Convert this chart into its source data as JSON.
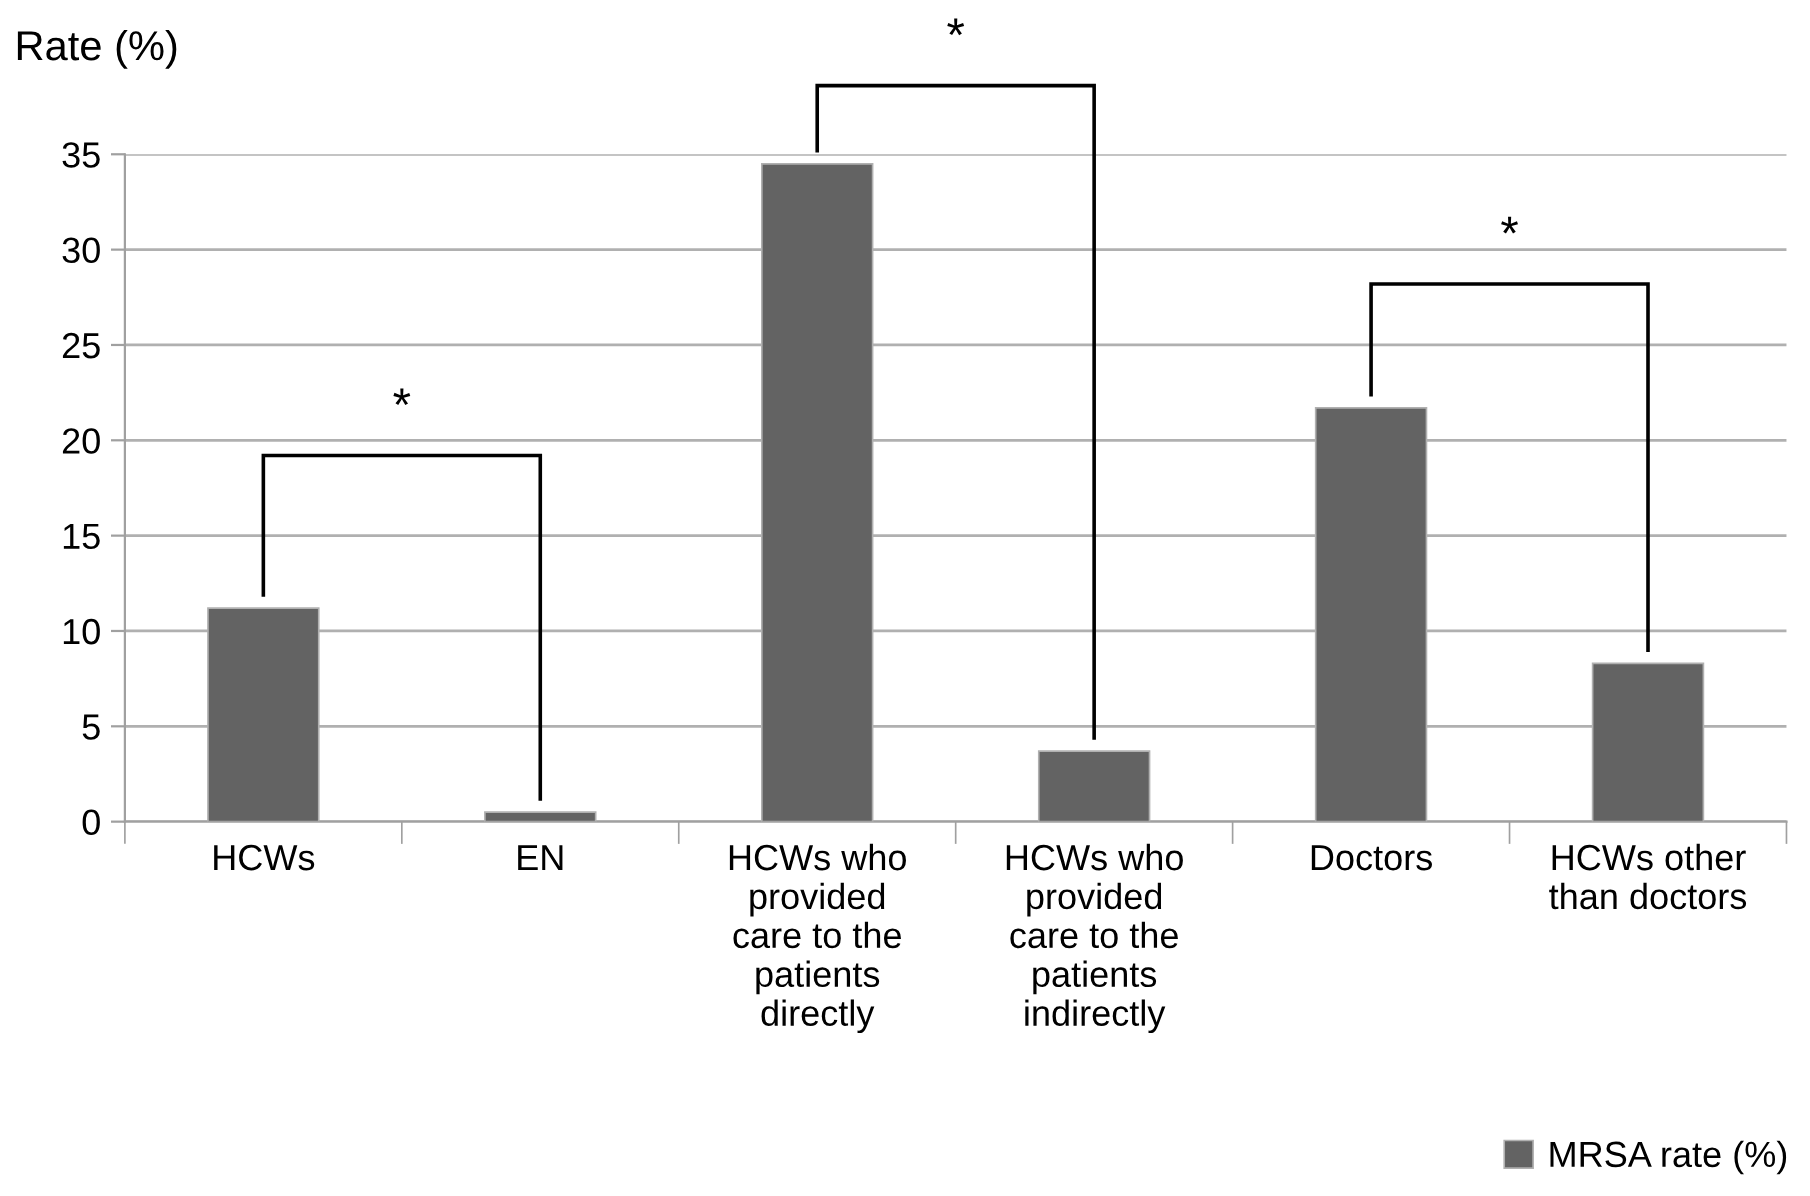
{
  "chart_data": {
    "type": "bar",
    "ylabel": "Rate (%)",
    "categories": [
      "HCWs",
      "EN",
      "HCWs who provided care to the patients directly",
      "HCWs who provided care to the patients indirectly",
      "Doctors",
      "HCWs other than doctors"
    ],
    "series": [
      {
        "name": "MRSA rate (%)",
        "color": "#636363",
        "values": [
          11.2,
          0.5,
          34.5,
          3.7,
          21.7,
          8.3
        ]
      }
    ],
    "ylim": [
      0,
      35
    ],
    "yticks": [
      0,
      5,
      10,
      15,
      20,
      25,
      30,
      35
    ],
    "grid": "y",
    "legend": "bottom right",
    "annotations": [
      "*",
      "*",
      "*"
    ]
  }
}
